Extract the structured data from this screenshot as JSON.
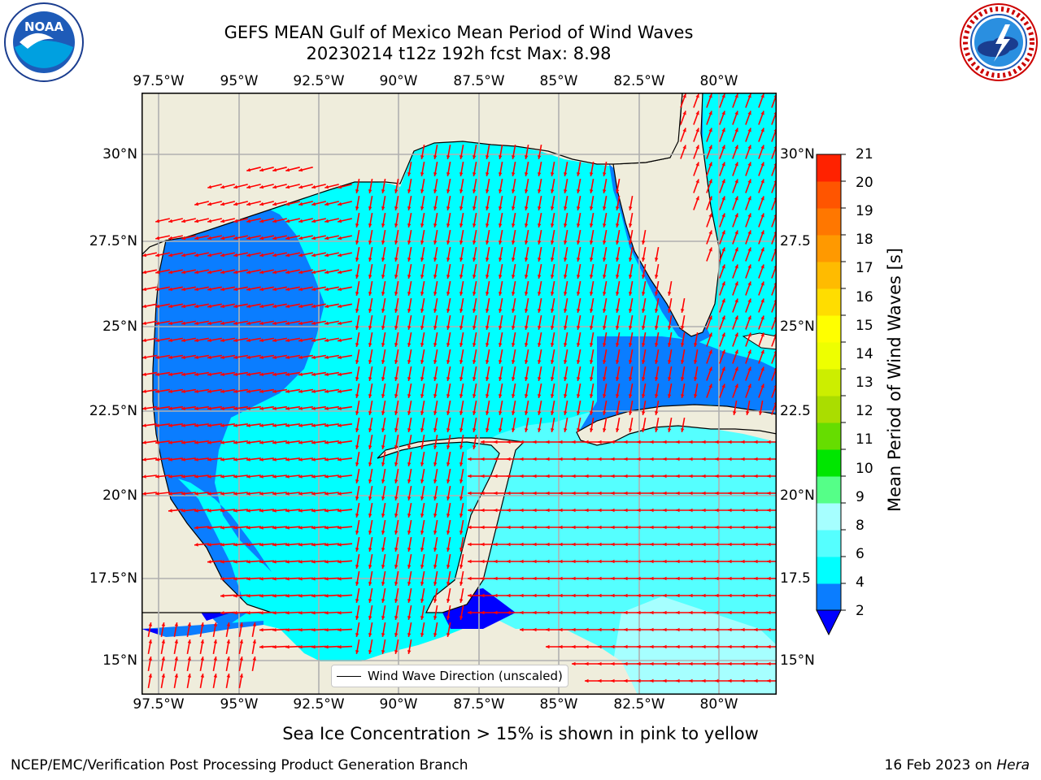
{
  "header": {
    "title_line1": "GEFS MEAN Gulf of Mexico Mean Period of Wind Waves",
    "title_line2": "20230214 t12z 192h fcst   Max: 8.98"
  },
  "logos": {
    "noaa": {
      "text": "NOAA",
      "ring_text": "NATIONAL OCEANIC AND ATMOSPHERIC ADMINISTRATION · U.S. DEPARTMENT OF COMMERCE"
    },
    "nws": {
      "ring_text": "NATIONAL WEATHER SERVICE"
    }
  },
  "map": {
    "lon_ticks_top": [
      "97.5°W",
      "95°W",
      "92.5°W",
      "90°W",
      "87.5°W",
      "85°W",
      "82.5°W",
      "80°W"
    ],
    "lon_ticks_bottom": [
      "97.5°W",
      "95°W",
      "92.5°W",
      "90°W",
      "87.5°W",
      "85°W",
      "82.5°W",
      "80°W"
    ],
    "lat_ticks_left": [
      "30°N",
      "27.5°N",
      "25°N",
      "22.5°N",
      "20°N",
      "17.5°N",
      "15°N"
    ],
    "lat_ticks_right": [
      "30°N",
      "27.5",
      "25°N",
      "22.5",
      "20°N",
      "17.5",
      "15°N"
    ],
    "legend_text": "Wind Wave Direction (unscaled)",
    "colors": {
      "land": "#efeddc",
      "ocean_2_4": "#0a7dff",
      "ocean_lt2": "#0000ff",
      "ocean_4_6": "#00ffff",
      "ocean_6_8": "#55ffff",
      "ocean_8_9": "#a6ffff",
      "arrow": "#ff0000",
      "grid": "#b0b0b0"
    }
  },
  "colorbar": {
    "label": "Mean Period of Wind Waves [s]",
    "ticks": [
      "21",
      "20",
      "19",
      "18",
      "17",
      "16",
      "15",
      "14",
      "13",
      "12",
      "11",
      "10",
      "9",
      "8",
      "6",
      "4",
      "2"
    ],
    "colors_bottom_to_top": [
      "#0a7dff",
      "#00ffff",
      "#55ffff",
      "#a6ffff",
      "#55ff88",
      "#00e600",
      "#66dd00",
      "#aadd00",
      "#ccee00",
      "#eeff00",
      "#ffff00",
      "#ffdd00",
      "#ffbb00",
      "#ff9900",
      "#ff7700",
      "#ff5500",
      "#ff2200"
    ],
    "extend_color": "#0000ff"
  },
  "bottom_note": "Sea Ice Concentration > 15% is shown in pink to yellow",
  "footer": {
    "left": "NCEP/EMC/Verification Post Processing Product Generation Branch",
    "right_date": "16 Feb 2023 on ",
    "right_host": "Hera"
  }
}
